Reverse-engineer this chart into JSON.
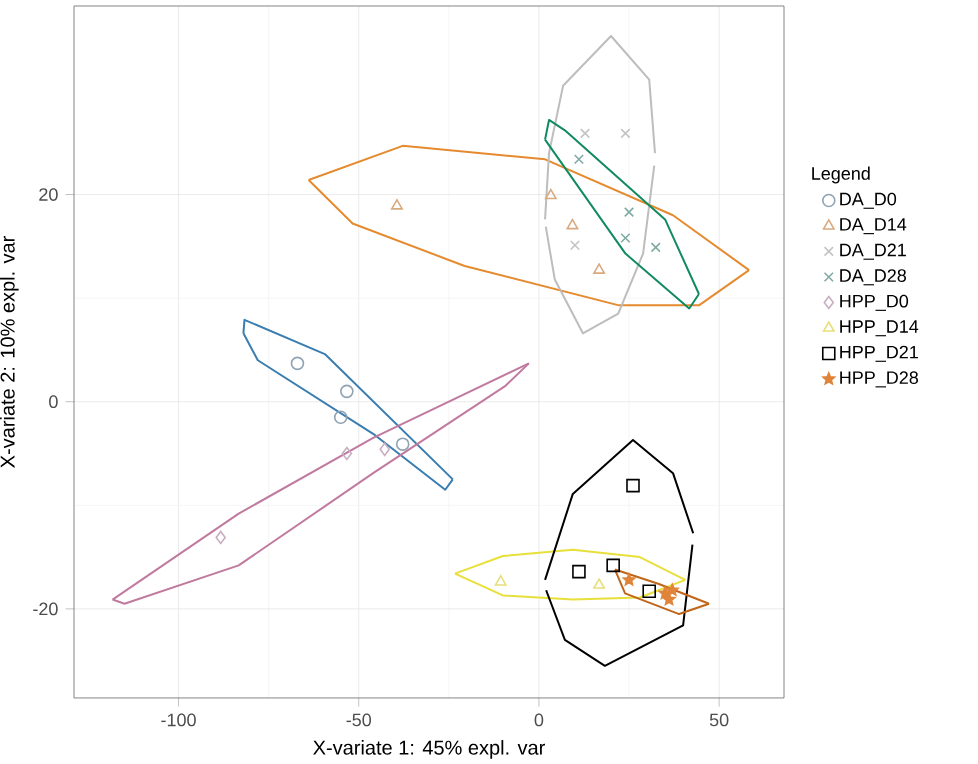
{
  "chart_data": {
    "type": "scatter",
    "xlabel": "X-variate 1: 45% expl. var",
    "ylabel": "X-variate 2: 10% expl. var",
    "legend_title": "Legend",
    "legend": "right",
    "grid": true,
    "xlim": [
      -129,
      68
    ],
    "ylim": [
      -28.6,
      38.2
    ],
    "xticks": [
      -100,
      -50,
      0,
      50
    ],
    "yticks": [
      -20,
      0,
      20
    ],
    "series": [
      {
        "name": "DA_D0",
        "color": "#8fa3b3",
        "marker": "circle",
        "x": [
          -67,
          -53.3,
          -55,
          -37.8
        ],
        "values": [
          3.7,
          1,
          -1.5,
          -4.1
        ]
      },
      {
        "name": "DA_D14",
        "color": "#d9aa80",
        "marker": "triangle",
        "x": [
          -39.4,
          3.3,
          9.3,
          16.7
        ],
        "values": [
          18.9,
          19.9,
          17,
          12.7
        ]
      },
      {
        "name": "DA_D21",
        "color": "#c4c4c4",
        "marker": "cross",
        "x": [
          12.8,
          24,
          10
        ],
        "values": [
          25.9,
          25.9,
          15.1
        ]
      },
      {
        "name": "DA_D28",
        "color": "#80aaa4",
        "marker": "cross",
        "x": [
          11.1,
          25,
          24,
          32.4
        ],
        "values": [
          23.4,
          18.3,
          15.8,
          14.9
        ]
      },
      {
        "name": "HPP_D0",
        "color": "#c8aec0",
        "marker": "diamond",
        "x": [
          -88.3,
          -53.3,
          -42.8
        ],
        "values": [
          -13.1,
          -5,
          -4.6
        ]
      },
      {
        "name": "HPP_D14",
        "color": "#e6df7a",
        "marker": "triangle",
        "x": [
          -10.6,
          16.7
        ],
        "values": [
          -17.4,
          -17.7
        ]
      },
      {
        "name": "HPP_D21",
        "color": "#000000",
        "marker": "square",
        "x": [
          26.1,
          11.1,
          20.6,
          30.6
        ],
        "values": [
          -8.1,
          -16.4,
          -15.8,
          -18.3
        ]
      },
      {
        "name": "HPP_D28",
        "color": "#e0843a",
        "marker": "star",
        "x": [
          25,
          35,
          37,
          36.1
        ],
        "values": [
          -17.2,
          -18.5,
          -18.2,
          -19.1
        ]
      },
      {
        "type": "line",
        "color": "#3a7db0",
        "marker": "none",
        "x": [
          -82,
          -81.7,
          -59.4,
          -23.9
        ],
        "values": [
          6.6,
          7.9,
          4.6,
          -7.5
        ]
      },
      {
        "type": "line",
        "color": "#3a7db0",
        "marker": "none",
        "x": [
          -82,
          -78,
          -46,
          -26,
          -23.9
        ],
        "values": [
          6.6,
          4,
          -3.1,
          -8.5,
          -7.5
        ]
      },
      {
        "type": "line",
        "color": "#e58a2e",
        "marker": "none",
        "x": [
          -63.9,
          -37.8,
          1.7,
          37.2,
          58.3
        ],
        "values": [
          21.4,
          24.7,
          23.4,
          18,
          12.7
        ]
      },
      {
        "type": "line",
        "color": "#e58a2e",
        "marker": "none",
        "x": [
          -63.9,
          -51.7,
          -20.6,
          22.2,
          44.4,
          58.3
        ],
        "values": [
          21.4,
          17.2,
          13.1,
          9.3,
          9.3,
          12.7
        ]
      },
      {
        "type": "line",
        "color": "#bdbdbd",
        "marker": "none",
        "x": [
          1.7,
          2.8,
          6.7,
          20,
          30.6,
          32.2
        ],
        "values": [
          17.6,
          24,
          30.5,
          35.3,
          31.1,
          24
        ]
      },
      {
        "type": "line",
        "color": "#bdbdbd",
        "marker": "none",
        "x": [
          1.9,
          4.4,
          12.2,
          22,
          28.9,
          32
        ],
        "values": [
          16.9,
          11.8,
          6.6,
          8.5,
          14.3,
          22.8
        ]
      },
      {
        "type": "line",
        "color": "#118a60",
        "marker": "none",
        "x": [
          1.7,
          2.8,
          7.2,
          35,
          44.4
        ],
        "values": [
          25.3,
          27.2,
          26.2,
          17.6,
          10.4
        ]
      },
      {
        "type": "line",
        "color": "#118a60",
        "marker": "none",
        "x": [
          1.7,
          24,
          41.7,
          44.4
        ],
        "values": [
          25.3,
          14.3,
          9,
          10.4
        ]
      },
      {
        "type": "line",
        "color": "#c07aa0",
        "marker": "none",
        "x": [
          -118.3,
          -83.3,
          -46,
          -2.8
        ],
        "values": [
          -19.1,
          -10.8,
          -3.5,
          3.7
        ]
      },
      {
        "type": "line",
        "color": "#c07aa0",
        "marker": "none",
        "x": [
          -118.3,
          -115,
          -83.3,
          -46,
          -9.4,
          -2.8
        ],
        "values": [
          -19.1,
          -19.5,
          -15.8,
          -6.9,
          1.5,
          3.7
        ]
      },
      {
        "type": "line",
        "color": "#e8e03a",
        "marker": "none",
        "x": [
          -23.3,
          -10,
          9.4,
          28,
          40.6
        ],
        "values": [
          -16.6,
          -14.9,
          -14.3,
          -15,
          -17.2
        ]
      },
      {
        "type": "line",
        "color": "#e8e03a",
        "marker": "none",
        "x": [
          -23.3,
          -10,
          9.4,
          28,
          40.6
        ],
        "values": [
          -16.6,
          -18.7,
          -19.1,
          -18.9,
          -17.2
        ]
      },
      {
        "type": "line",
        "color": "#000000",
        "marker": "none",
        "x": [
          1.7,
          9.4,
          26.1,
          37.2,
          42.8
        ],
        "values": [
          -17.2,
          -8.9,
          -3.7,
          -6.9,
          -12.7
        ]
      },
      {
        "type": "line",
        "color": "#000000",
        "marker": "none",
        "x": [
          2,
          7.2,
          18.3,
          40,
          42.6
        ],
        "values": [
          -18.2,
          -23,
          -25.5,
          -21.6,
          -13.8
        ]
      },
      {
        "type": "line",
        "color": "#c0661a",
        "marker": "none",
        "x": [
          21.1,
          33.3,
          47.2
        ],
        "values": [
          -16.2,
          -17.6,
          -19.5
        ]
      },
      {
        "type": "line",
        "color": "#c0661a",
        "marker": "none",
        "x": [
          21.1,
          23.9,
          38.9,
          47.2
        ],
        "values": [
          -16.2,
          -18.5,
          -20.5,
          -19.5
        ]
      }
    ]
  }
}
